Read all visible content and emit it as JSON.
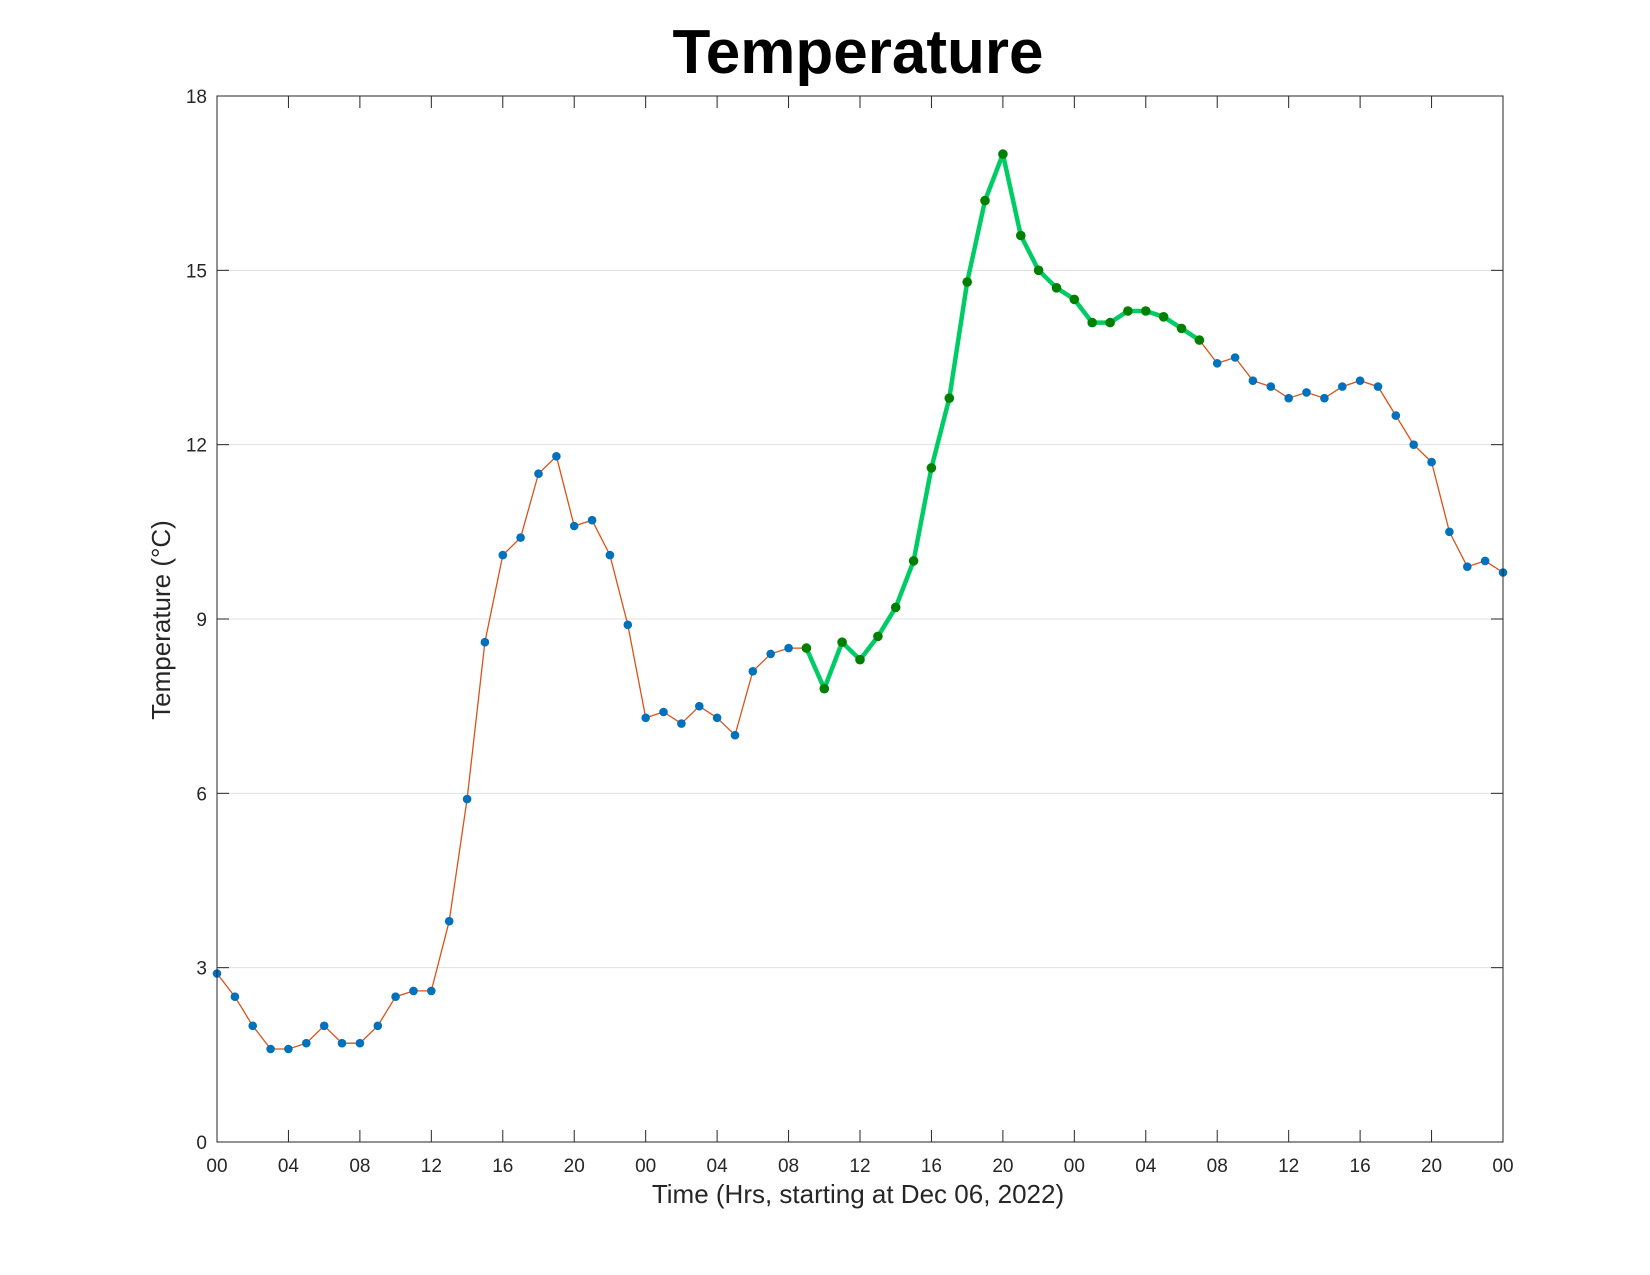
{
  "chart_data": {
    "type": "line",
    "title": "Temperature",
    "xlabel": "Time (Hrs, starting at Dec 06, 2022)",
    "ylabel": "Temperature (°C)",
    "x_unit": "hours",
    "x_range": [
      0,
      72
    ],
    "ylim": [
      0,
      18
    ],
    "y_ticks": [
      0,
      3,
      6,
      9,
      12,
      15,
      18
    ],
    "x_tick_values": [
      0,
      4,
      8,
      12,
      16,
      20,
      24,
      28,
      32,
      36,
      40,
      44,
      48,
      52,
      56,
      60,
      64,
      68,
      72
    ],
    "x_tick_labels": [
      "00",
      "04",
      "08",
      "12",
      "16",
      "20",
      "00",
      "04",
      "08",
      "12",
      "16",
      "20",
      "00",
      "04",
      "08",
      "12",
      "16",
      "20",
      "00"
    ],
    "grid": "horizontal",
    "highlight_range": [
      33,
      55
    ],
    "colors": {
      "line": "#d95319",
      "marker": "#0072bd",
      "highlight_line": "#00cc66",
      "highlight_marker": "#008000",
      "grid": "#e0e0e0",
      "axes": "#262626"
    },
    "series": [
      {
        "x": [
          0,
          1,
          2,
          3,
          4,
          5,
          6,
          7,
          8,
          9,
          10,
          11,
          12,
          13,
          14,
          15,
          16,
          17,
          18,
          19,
          20,
          21,
          22,
          23,
          24,
          25,
          26,
          27,
          28,
          29,
          30,
          31,
          32,
          33,
          34,
          35,
          36,
          37,
          38,
          39,
          40,
          41,
          42,
          43,
          44,
          45,
          46,
          47,
          48,
          49,
          50,
          51,
          52,
          53,
          54,
          55,
          56,
          57,
          58,
          59,
          60,
          61,
          62,
          63,
          64,
          65,
          66,
          67,
          68,
          69,
          70,
          71,
          72
        ],
        "y": [
          2.9,
          2.5,
          2.0,
          1.6,
          1.6,
          1.7,
          2.0,
          1.7,
          1.7,
          2.0,
          2.5,
          2.6,
          2.6,
          3.8,
          5.9,
          8.6,
          10.1,
          10.4,
          11.5,
          11.8,
          10.6,
          10.7,
          10.1,
          8.9,
          7.3,
          7.4,
          7.2,
          7.5,
          7.3,
          7.0,
          8.1,
          8.4,
          8.5,
          8.5,
          7.8,
          8.6,
          8.3,
          8.7,
          9.2,
          10.0,
          11.6,
          12.8,
          14.8,
          16.2,
          17.0,
          15.6,
          15.0,
          14.7,
          14.5,
          14.1,
          14.1,
          14.3,
          14.3,
          14.2,
          14.0,
          13.8,
          13.4,
          13.5,
          13.1,
          13.0,
          12.8,
          12.9,
          12.8,
          13.0,
          13.1,
          13.0,
          12.5,
          12.0,
          11.7,
          10.5,
          9.9,
          10.0,
          9.8
        ]
      }
    ]
  }
}
